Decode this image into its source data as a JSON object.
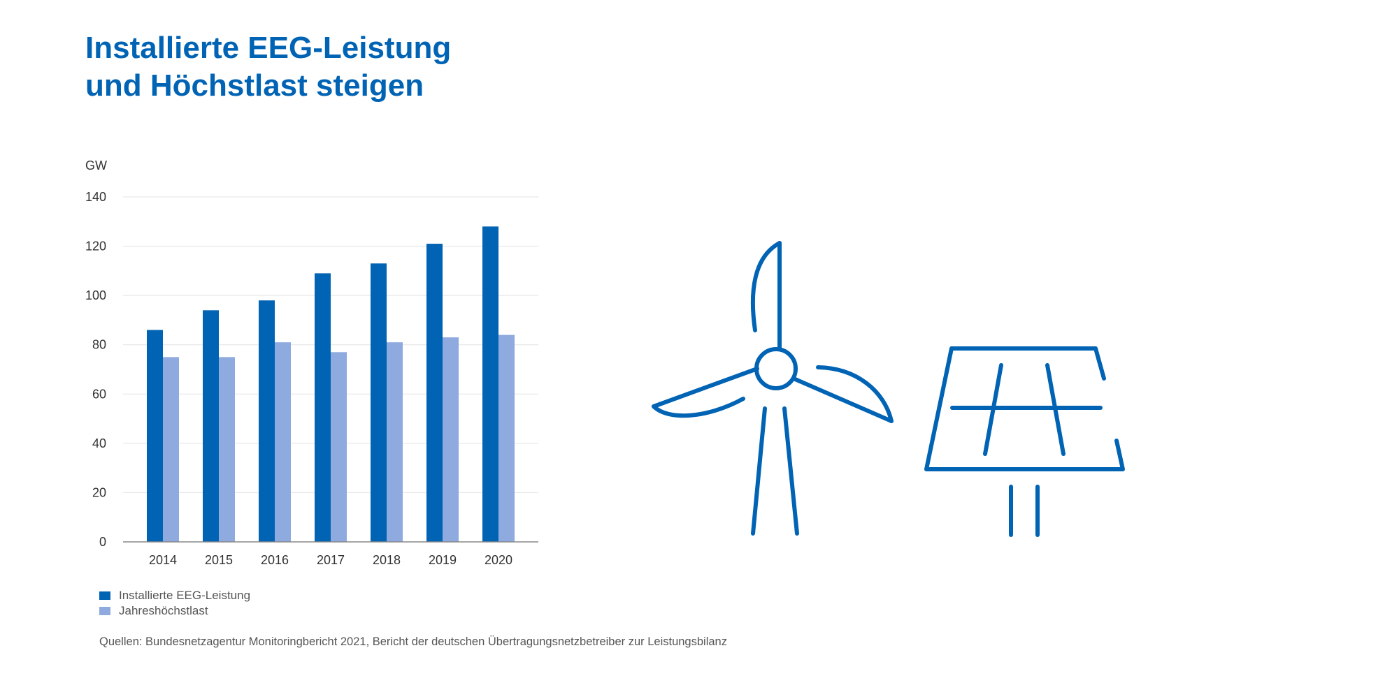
{
  "title": {
    "line1": "Installierte EEG-Leistung",
    "line2": "und Höchstlast steigen"
  },
  "colors": {
    "title": "#0063b4",
    "series_dark": "#0063b4",
    "series_light": "#8eaade",
    "grid": "#e3e3e3",
    "axis": "#888888",
    "icon": "#0063b4"
  },
  "chart_data": {
    "type": "bar",
    "ylabel": "GW",
    "ylim": [
      0,
      140
    ],
    "yticks": [
      0,
      20,
      40,
      60,
      80,
      100,
      120,
      140
    ],
    "grid": true,
    "legend_position": "bottom-left",
    "categories": [
      "2014",
      "2015",
      "2016",
      "2017",
      "2018",
      "2019",
      "2020"
    ],
    "series": [
      {
        "name": "Installierte EEG-Leistung",
        "values": [
          86,
          94,
          98,
          109,
          113,
          121,
          128
        ]
      },
      {
        "name": "Jahreshöchstlast",
        "values": [
          75,
          75,
          81,
          77,
          81,
          83,
          84
        ]
      }
    ]
  },
  "source": "Quellen: Bundesnetzagentur Monitoringbericht 2021, Bericht der deutschen Übertragungsnetzbetreiber zur Leistungsbilanz",
  "icons": [
    "wind-turbine-icon",
    "solar-panel-icon"
  ]
}
